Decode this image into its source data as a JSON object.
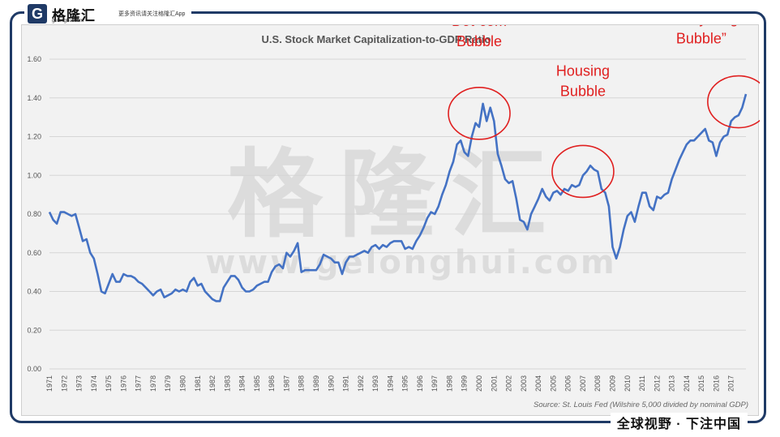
{
  "brand": {
    "name": "格隆汇",
    "logo_letter": "G",
    "url": "gelonghui.com",
    "slogan": "更多资讯请关注格隆汇App"
  },
  "watermark": {
    "title": "格隆汇",
    "url": "www.gelonghui.com"
  },
  "bottom_banner": "全球视野 · 下注中国",
  "chart_data": {
    "type": "line",
    "title": "U.S. Stock Market Capitalization-to-GDP Ratio",
    "source": "Source: St. Louis Fed (Wilshire 5,000 divided by nominal GDP)",
    "ylim": [
      0,
      1.6
    ],
    "yticks": [
      "0.00",
      "0.20",
      "0.40",
      "0.60",
      "0.80",
      "1.00",
      "1.20",
      "1.40",
      "1.60"
    ],
    "xticks": [
      "1971",
      "1972",
      "1973",
      "1974",
      "1975",
      "1976",
      "1977",
      "1978",
      "1979",
      "1980",
      "1981",
      "1982",
      "1983",
      "1984",
      "1985",
      "1986",
      "1987",
      "1988",
      "1989",
      "1990",
      "1991",
      "1992",
      "1993",
      "1994",
      "1995",
      "1996",
      "1997",
      "1998",
      "1999",
      "2000",
      "2001",
      "2002",
      "2003",
      "2004",
      "2005",
      "2006",
      "2007",
      "2008",
      "2009",
      "2010",
      "2011",
      "2012",
      "2013",
      "2014",
      "2015",
      "2016",
      "2017"
    ],
    "line_color": "#4472c4",
    "annotation_color": "#e02020",
    "series": [
      {
        "x": [
          1971,
          1971.25,
          1971.5,
          1971.75,
          1972,
          1972.25,
          1972.5,
          1972.75,
          1973,
          1973.25,
          1973.5,
          1973.75,
          1974,
          1974.25,
          1974.5,
          1974.75,
          1975,
          1975.25,
          1975.5,
          1975.75,
          1976,
          1976.25,
          1976.5,
          1976.75,
          1977,
          1977.25,
          1977.5,
          1977.75,
          1978,
          1978.25,
          1978.5,
          1978.75,
          1979,
          1979.25,
          1979.5,
          1979.75,
          1980,
          1980.25,
          1980.5,
          1980.75,
          1981,
          1981.25,
          1981.5,
          1981.75,
          1982,
          1982.25,
          1982.5,
          1982.75,
          1983,
          1983.25,
          1983.5,
          1983.75,
          1984,
          1984.25,
          1984.5,
          1984.75,
          1985,
          1985.25,
          1985.5,
          1985.75,
          1986,
          1986.25,
          1986.5,
          1986.75,
          1987,
          1987.25,
          1987.5,
          1987.75,
          1988,
          1988.25,
          1988.5,
          1988.75,
          1989,
          1989.25,
          1989.5,
          1989.75,
          1990,
          1990.25,
          1990.5,
          1990.75,
          1991,
          1991.25,
          1991.5,
          1991.75,
          1992,
          1992.25,
          1992.5,
          1992.75,
          1993,
          1993.25,
          1993.5,
          1993.75,
          1994,
          1994.25,
          1994.5,
          1994.75,
          1995,
          1995.25,
          1995.5,
          1995.75,
          1996,
          1996.25,
          1996.5,
          1996.75,
          1997,
          1997.25,
          1997.5,
          1997.75,
          1998,
          1998.25,
          1998.5,
          1998.75,
          1999,
          1999.25,
          1999.5,
          1999.75,
          2000,
          2000.25,
          2000.5,
          2000.75,
          2001,
          2001.25,
          2001.5,
          2001.75,
          2002,
          2002.25,
          2002.5,
          2002.75,
          2003,
          2003.25,
          2003.5,
          2003.75,
          2004,
          2004.25,
          2004.5,
          2004.75,
          2005,
          2005.25,
          2005.5,
          2005.75,
          2006,
          2006.25,
          2006.5,
          2006.75,
          2007,
          2007.25,
          2007.5,
          2007.75,
          2008,
          2008.25,
          2008.5,
          2008.75,
          2009,
          2009.25,
          2009.5,
          2009.75,
          2010,
          2010.25,
          2010.5,
          2010.75,
          2011,
          2011.25,
          2011.5,
          2011.75,
          2012,
          2012.25,
          2012.5,
          2012.75,
          2013,
          2013.25,
          2013.5,
          2013.75,
          2014,
          2014.25,
          2014.5,
          2014.75,
          2015,
          2015.25,
          2015.5,
          2015.75,
          2016,
          2016.25,
          2016.5,
          2016.75,
          2017,
          2017.25,
          2017.5,
          2017.75,
          2018
        ],
        "y": [
          0.81,
          0.77,
          0.75,
          0.81,
          0.81,
          0.8,
          0.79,
          0.8,
          0.73,
          0.66,
          0.67,
          0.6,
          0.57,
          0.49,
          0.4,
          0.39,
          0.44,
          0.49,
          0.45,
          0.45,
          0.49,
          0.48,
          0.48,
          0.47,
          0.45,
          0.44,
          0.42,
          0.4,
          0.38,
          0.4,
          0.41,
          0.37,
          0.38,
          0.39,
          0.41,
          0.4,
          0.41,
          0.4,
          0.45,
          0.47,
          0.43,
          0.44,
          0.4,
          0.38,
          0.36,
          0.35,
          0.35,
          0.42,
          0.45,
          0.48,
          0.48,
          0.46,
          0.42,
          0.4,
          0.4,
          0.41,
          0.43,
          0.44,
          0.45,
          0.45,
          0.5,
          0.53,
          0.54,
          0.52,
          0.6,
          0.58,
          0.61,
          0.65,
          0.5,
          0.51,
          0.51,
          0.51,
          0.51,
          0.54,
          0.59,
          0.58,
          0.57,
          0.55,
          0.55,
          0.49,
          0.55,
          0.58,
          0.58,
          0.59,
          0.6,
          0.61,
          0.6,
          0.63,
          0.64,
          0.62,
          0.64,
          0.63,
          0.65,
          0.66,
          0.66,
          0.66,
          0.62,
          0.63,
          0.62,
          0.66,
          0.69,
          0.73,
          0.78,
          0.81,
          0.8,
          0.84,
          0.9,
          0.95,
          1.02,
          1.07,
          1.16,
          1.18,
          1.12,
          1.1,
          1.2,
          1.27,
          1.25,
          1.37,
          1.28,
          1.35,
          1.28,
          1.11,
          1.05,
          0.98,
          0.96,
          0.97,
          0.88,
          0.77,
          0.76,
          0.72,
          0.8,
          0.84,
          0.88,
          0.93,
          0.89,
          0.87,
          0.91,
          0.92,
          0.9,
          0.93,
          0.92,
          0.95,
          0.94,
          0.95,
          1.0,
          1.02,
          1.05,
          1.03,
          1.02,
          0.93,
          0.91,
          0.84,
          0.63,
          0.57,
          0.63,
          0.72,
          0.79,
          0.81,
          0.76,
          0.84,
          0.91,
          0.91,
          0.84,
          0.82,
          0.89,
          0.88,
          0.9,
          0.91,
          0.98,
          1.03,
          1.08,
          1.12,
          1.16,
          1.18,
          1.18,
          1.2,
          1.22,
          1.24,
          1.18,
          1.17,
          1.1,
          1.17,
          1.2,
          1.21,
          1.28,
          1.3,
          1.31,
          1.35,
          1.42
        ]
      }
    ],
    "annotations": [
      {
        "label_lines": [
          "Dot-com",
          "Bubble"
        ],
        "x": 2000,
        "y": 1.32
      },
      {
        "label_lines": [
          "Housing",
          "Bubble"
        ],
        "x": 2007,
        "y": 1.02
      },
      {
        "label_lines": [
          "“Everything",
          "Bubble”"
        ],
        "x": 2017.5,
        "y": 1.38
      }
    ]
  }
}
